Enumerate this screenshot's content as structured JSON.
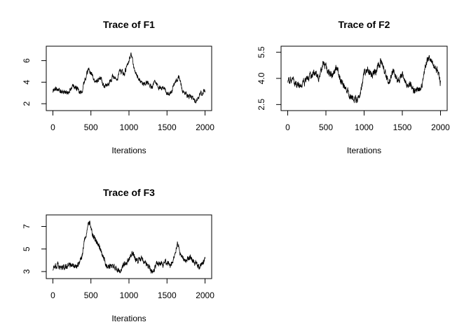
{
  "chart_data": [
    {
      "type": "line",
      "title": "Trace of F1",
      "xlabel": "Iterations",
      "ylabel": "",
      "xlim": [
        0,
        2000
      ],
      "ylim": [
        1.6,
        7.1
      ],
      "x_ticks": [
        0,
        500,
        1000,
        1500,
        2000
      ],
      "y_ticks": [
        2,
        4,
        6
      ],
      "keypoints": [
        {
          "x": 0,
          "y": 3.2
        },
        {
          "x": 50,
          "y": 3.4
        },
        {
          "x": 120,
          "y": 3.1
        },
        {
          "x": 200,
          "y": 3.0
        },
        {
          "x": 260,
          "y": 3.7
        },
        {
          "x": 330,
          "y": 3.3
        },
        {
          "x": 380,
          "y": 3.0
        },
        {
          "x": 420,
          "y": 4.2
        },
        {
          "x": 470,
          "y": 5.2
        },
        {
          "x": 520,
          "y": 4.6
        },
        {
          "x": 560,
          "y": 4.0
        },
        {
          "x": 620,
          "y": 4.4
        },
        {
          "x": 680,
          "y": 3.6
        },
        {
          "x": 740,
          "y": 3.9
        },
        {
          "x": 790,
          "y": 4.6
        },
        {
          "x": 840,
          "y": 4.0
        },
        {
          "x": 880,
          "y": 5.0
        },
        {
          "x": 940,
          "y": 4.8
        },
        {
          "x": 990,
          "y": 5.8
        },
        {
          "x": 1030,
          "y": 6.7
        },
        {
          "x": 1070,
          "y": 5.2
        },
        {
          "x": 1120,
          "y": 4.4
        },
        {
          "x": 1170,
          "y": 3.8
        },
        {
          "x": 1230,
          "y": 4.1
        },
        {
          "x": 1290,
          "y": 3.5
        },
        {
          "x": 1350,
          "y": 4.1
        },
        {
          "x": 1400,
          "y": 3.4
        },
        {
          "x": 1450,
          "y": 3.5
        },
        {
          "x": 1510,
          "y": 2.8
        },
        {
          "x": 1560,
          "y": 3.2
        },
        {
          "x": 1620,
          "y": 4.1
        },
        {
          "x": 1660,
          "y": 4.5
        },
        {
          "x": 1700,
          "y": 3.2
        },
        {
          "x": 1760,
          "y": 2.8
        },
        {
          "x": 1820,
          "y": 2.6
        },
        {
          "x": 1880,
          "y": 2.2
        },
        {
          "x": 1910,
          "y": 2.6
        },
        {
          "x": 1960,
          "y": 3.0
        },
        {
          "x": 2000,
          "y": 3.3
        }
      ],
      "noise": 0.18
    },
    {
      "type": "line",
      "title": "Trace of F2",
      "xlabel": "Iterations",
      "ylabel": "",
      "xlim": [
        0,
        2000
      ],
      "ylim": [
        2.3,
        5.7
      ],
      "x_ticks": [
        0,
        500,
        1000,
        1500,
        2000
      ],
      "y_ticks": [
        2.5,
        4.0,
        5.5
      ],
      "keypoints": [
        {
          "x": 0,
          "y": 3.9
        },
        {
          "x": 80,
          "y": 3.8
        },
        {
          "x": 160,
          "y": 3.5
        },
        {
          "x": 220,
          "y": 3.8
        },
        {
          "x": 300,
          "y": 4.2
        },
        {
          "x": 360,
          "y": 4.4
        },
        {
          "x": 410,
          "y": 4.0
        },
        {
          "x": 460,
          "y": 4.9
        },
        {
          "x": 520,
          "y": 4.5
        },
        {
          "x": 580,
          "y": 4.1
        },
        {
          "x": 640,
          "y": 4.7
        },
        {
          "x": 700,
          "y": 3.8
        },
        {
          "x": 760,
          "y": 3.4
        },
        {
          "x": 820,
          "y": 3.0
        },
        {
          "x": 870,
          "y": 2.7
        },
        {
          "x": 920,
          "y": 2.8
        },
        {
          "x": 960,
          "y": 3.3
        },
        {
          "x": 1000,
          "y": 4.3
        },
        {
          "x": 1050,
          "y": 4.5
        },
        {
          "x": 1100,
          "y": 4.2
        },
        {
          "x": 1160,
          "y": 4.5
        },
        {
          "x": 1220,
          "y": 5.0
        },
        {
          "x": 1280,
          "y": 4.3
        },
        {
          "x": 1320,
          "y": 3.7
        },
        {
          "x": 1380,
          "y": 4.5
        },
        {
          "x": 1440,
          "y": 3.8
        },
        {
          "x": 1500,
          "y": 4.2
        },
        {
          "x": 1560,
          "y": 3.6
        },
        {
          "x": 1600,
          "y": 3.8
        },
        {
          "x": 1660,
          "y": 3.2
        },
        {
          "x": 1710,
          "y": 3.4
        },
        {
          "x": 1760,
          "y": 3.6
        },
        {
          "x": 1800,
          "y": 4.7
        },
        {
          "x": 1850,
          "y": 5.3
        },
        {
          "x": 1900,
          "y": 4.8
        },
        {
          "x": 1960,
          "y": 4.4
        },
        {
          "x": 2000,
          "y": 3.7
        }
      ],
      "noise": 0.16
    },
    {
      "type": "line",
      "title": "Trace of F3",
      "xlabel": "Iterations",
      "ylabel": "",
      "xlim": [
        0,
        2000
      ],
      "ylim": [
        2.6,
        7.8
      ],
      "x_ticks": [
        0,
        500,
        1000,
        1500,
        2000
      ],
      "y_ticks": [
        3,
        5,
        7
      ],
      "keypoints": [
        {
          "x": 0,
          "y": 3.3
        },
        {
          "x": 60,
          "y": 3.6
        },
        {
          "x": 120,
          "y": 3.3
        },
        {
          "x": 200,
          "y": 3.5
        },
        {
          "x": 260,
          "y": 3.6
        },
        {
          "x": 320,
          "y": 3.4
        },
        {
          "x": 380,
          "y": 4.2
        },
        {
          "x": 420,
          "y": 5.9
        },
        {
          "x": 460,
          "y": 7.0
        },
        {
          "x": 490,
          "y": 7.3
        },
        {
          "x": 530,
          "y": 6.1
        },
        {
          "x": 570,
          "y": 5.7
        },
        {
          "x": 620,
          "y": 5.1
        },
        {
          "x": 660,
          "y": 4.3
        },
        {
          "x": 700,
          "y": 3.6
        },
        {
          "x": 760,
          "y": 3.4
        },
        {
          "x": 820,
          "y": 3.3
        },
        {
          "x": 880,
          "y": 3.1
        },
        {
          "x": 940,
          "y": 3.6
        },
        {
          "x": 1000,
          "y": 4.1
        },
        {
          "x": 1050,
          "y": 4.6
        },
        {
          "x": 1100,
          "y": 4.0
        },
        {
          "x": 1160,
          "y": 4.2
        },
        {
          "x": 1220,
          "y": 3.8
        },
        {
          "x": 1280,
          "y": 3.2
        },
        {
          "x": 1320,
          "y": 3.0
        },
        {
          "x": 1380,
          "y": 3.8
        },
        {
          "x": 1440,
          "y": 3.6
        },
        {
          "x": 1500,
          "y": 3.9
        },
        {
          "x": 1550,
          "y": 3.5
        },
        {
          "x": 1600,
          "y": 4.5
        },
        {
          "x": 1640,
          "y": 5.6
        },
        {
          "x": 1680,
          "y": 4.4
        },
        {
          "x": 1740,
          "y": 3.9
        },
        {
          "x": 1800,
          "y": 4.3
        },
        {
          "x": 1860,
          "y": 3.8
        },
        {
          "x": 1920,
          "y": 3.4
        },
        {
          "x": 1960,
          "y": 3.7
        },
        {
          "x": 2000,
          "y": 4.0
        }
      ],
      "noise": 0.2
    }
  ]
}
